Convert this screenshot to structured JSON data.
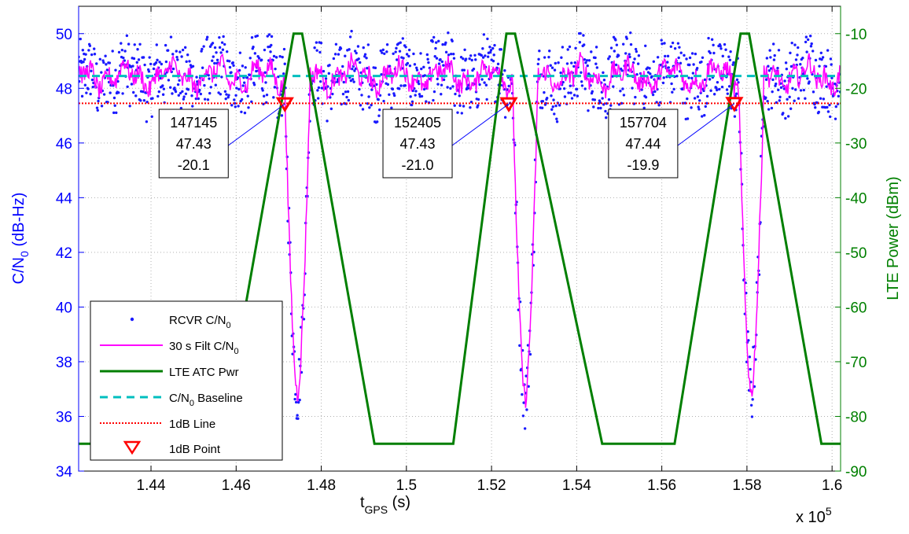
{
  "chart_data": {
    "type": "line",
    "x_label": {
      "main": "t",
      "sub": "GPS",
      "tail": " (s)"
    },
    "x_multiplier": "x 10",
    "x_multiplier_exp": "5",
    "x_ticks": [
      "1.44",
      "1.46",
      "1.48",
      "1.5",
      "1.52",
      "1.54",
      "1.56",
      "1.58",
      "1.6"
    ],
    "x_tick_values": [
      144000,
      146000,
      148000,
      150000,
      152000,
      154000,
      156000,
      158000,
      160000
    ],
    "xlim": [
      142300,
      160200
    ],
    "y_left_label": {
      "main": "C/N",
      "sub": "0",
      "tail": " (dB-Hz)"
    },
    "y_left_ticks": [
      "34",
      "36",
      "38",
      "40",
      "42",
      "44",
      "46",
      "48",
      "50"
    ],
    "y_left_lim": [
      34,
      51
    ],
    "y_right_label": "LTE Power (dBm)",
    "y_right_ticks": [
      "-90",
      "-80",
      "-70",
      "-60",
      "-50",
      "-40",
      "-30",
      "-20",
      "-10"
    ],
    "y_right_lim": [
      -90,
      -5
    ],
    "grid": true,
    "legend_position": "bottom-left",
    "colors": {
      "left_axis": "#0000ff",
      "right_axis": "#008000",
      "rcvr": "#1a1aff",
      "filt": "#ff00ff",
      "lte": "#007f00",
      "baseline": "#00bfbf",
      "line_1db": "#ff0000",
      "point_1db": "#ff0000"
    },
    "series": [
      {
        "name": "RCVR C/N",
        "name_sub": "0",
        "kind": "markers",
        "axis": "left"
      },
      {
        "name": "30 s Filt C/N",
        "name_sub": "0",
        "kind": "solid",
        "axis": "left"
      },
      {
        "name": "LTE ATC Pwr",
        "kind": "solid",
        "axis": "right",
        "x": [
          142300,
          145650,
          147350,
          147550,
          149250,
          151100,
          152350,
          152550,
          154600,
          156300,
          157850,
          158050,
          159750,
          160200
        ],
        "y": [
          -85,
          -85,
          -10,
          -10,
          -85,
          -85,
          -10,
          -10,
          -85,
          -85,
          -10,
          -10,
          -85,
          -85
        ]
      },
      {
        "name": "C/N Baseline",
        "name_pre": "C/N",
        "name_sub": "0",
        "name_tail": " Baseline",
        "kind": "dashed",
        "axis": "left",
        "y": 48.45
      },
      {
        "name": "1dB Line",
        "kind": "dotted",
        "axis": "left",
        "y": 47.45
      },
      {
        "name": "1dB Point",
        "kind": "triangle",
        "axis": "left",
        "points": [
          [
            147145,
            47.43
          ],
          [
            152405,
            47.43
          ],
          [
            157704,
            47.44
          ]
        ]
      }
    ],
    "dips": [
      {
        "center": 147440,
        "depth": 36.8
      },
      {
        "center": 152790,
        "depth": 36.6
      },
      {
        "center": 158100,
        "depth": 36.8
      }
    ],
    "annotations": [
      {
        "x": 147145,
        "lines": [
          "147145",
          "47.43",
          "-20.1"
        ]
      },
      {
        "x": 152405,
        "lines": [
          "152405",
          "47.43",
          "-21.0"
        ]
      },
      {
        "x": 157704,
        "lines": [
          "157704",
          "47.44",
          "-19.9"
        ]
      }
    ]
  }
}
